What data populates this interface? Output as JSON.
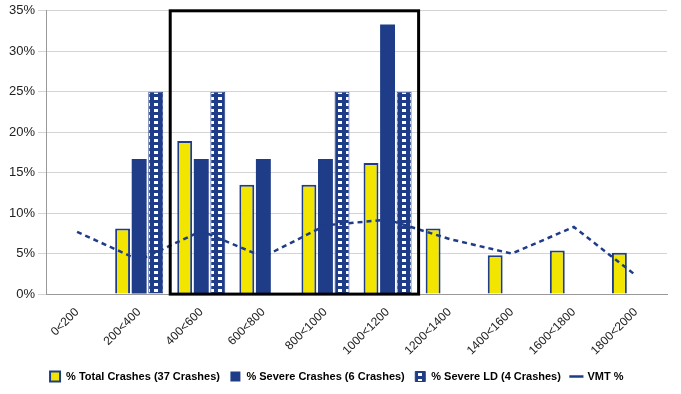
{
  "chart_data": {
    "type": "bar",
    "categories": [
      "0<200",
      "200<400",
      "400<600",
      "600<800",
      "800<1000",
      "1000<1200",
      "1200<1400",
      "1400<1600",
      "1600<1800",
      "1800<2000"
    ],
    "series": [
      {
        "name": "% Total Crashes (37 Crashes)",
        "type": "bar",
        "color": "#f2e600",
        "values": [
          0,
          8.1,
          18.9,
          13.5,
          13.5,
          16.2,
          8.1,
          4.8,
          5.4,
          5.1
        ]
      },
      {
        "name": "% Severe Crashes (6 Crashes)",
        "type": "bar",
        "color": "#1f3c88",
        "values": [
          0,
          16.7,
          16.7,
          16.7,
          16.7,
          33.3,
          0,
          0,
          0,
          0
        ]
      },
      {
        "name": "% Severe LD (4 Crashes)",
        "type": "bar",
        "color": "#1f3c88",
        "values": [
          0,
          25,
          25,
          0,
          25,
          25,
          0,
          0,
          0,
          0
        ]
      },
      {
        "name": "VMT %",
        "type": "line",
        "color": "#1f3c88",
        "line_style": "dashed",
        "values": [
          7.7,
          4.2,
          7.8,
          4.6,
          8.5,
          9.2,
          6.8,
          5.0,
          8.3,
          2.3
        ]
      }
    ],
    "ylim": [
      0,
      35
    ],
    "yticks": [
      {
        "value": 0,
        "label": "0%"
      },
      {
        "value": 5,
        "label": "5%"
      },
      {
        "value": 10,
        "label": "10%"
      },
      {
        "value": 15,
        "label": "15%"
      },
      {
        "value": 20,
        "label": "20%"
      },
      {
        "value": 25,
        "label": "25%"
      },
      {
        "value": 30,
        "label": "30%"
      },
      {
        "value": 35,
        "label": "35%"
      }
    ],
    "grid": true,
    "legend": "bottom"
  }
}
